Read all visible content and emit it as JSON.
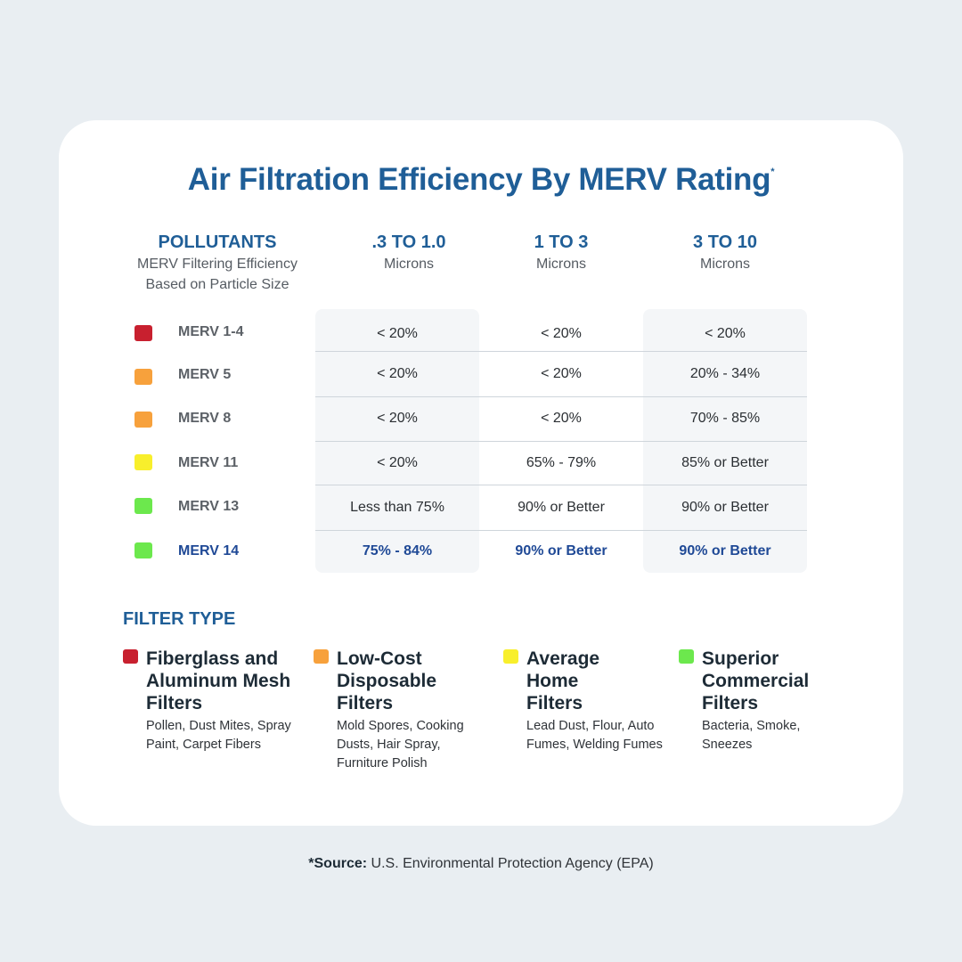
{
  "title": "Air Filtration Efficiency By MERV Rating",
  "title_mark": "*",
  "header": {
    "pollutants_title": "POLLUTANTS",
    "pollutants_sub1": "MERV Filtering Efficiency",
    "pollutants_sub2": "Based on Particle Size",
    "columns": [
      {
        "range": ".3 TO 1.0",
        "unit": "Microns"
      },
      {
        "range": "1 TO 3",
        "unit": "Microns"
      },
      {
        "range": "3 TO 10",
        "unit": "Microns"
      }
    ]
  },
  "rows": [
    {
      "label": "MERV 1-4",
      "color": "#c8202f",
      "values": [
        "< 20%",
        "< 20%",
        "< 20%"
      ]
    },
    {
      "label": "MERV 5",
      "color": "#f7a13c",
      "values": [
        "< 20%",
        "< 20%",
        "20% - 34%"
      ]
    },
    {
      "label": "MERV 8",
      "color": "#f7a13c",
      "values": [
        "< 20%",
        "< 20%",
        "70% - 85%"
      ]
    },
    {
      "label": "MERV 11",
      "color": "#f8ef2c",
      "values": [
        "< 20%",
        "65% - 79%",
        "85% or Better"
      ]
    },
    {
      "label": "MERV 13",
      "color": "#6ce84d",
      "values": [
        "Less than 75%",
        "90% or Better",
        "90% or Better"
      ]
    },
    {
      "label": "MERV 14",
      "color": "#6ce84d",
      "values": [
        "75% - 84%",
        "90% or Better",
        "90% or Better"
      ]
    }
  ],
  "filter_type": {
    "title": "FILTER TYPE",
    "items": [
      {
        "color": "#c8202f",
        "name": "Fiberglass and Aluminum Mesh Filters",
        "desc": "Pollen, Dust Mites, Spray Paint, Carpet Fibers"
      },
      {
        "color": "#f7a13c",
        "name": "Low-Cost Disposable Filters",
        "desc": "Mold Spores, Cooking Dusts, Hair Spray, Furniture Polish"
      },
      {
        "color": "#f8ef2c",
        "name": "Average Home Filters",
        "desc": "Lead Dust, Flour, Auto Fumes, Welding Fumes"
      },
      {
        "color": "#6ce84d",
        "name": "Superior Commercial Filters",
        "desc": "Bacteria, Smoke, Sneezes"
      }
    ]
  },
  "source": {
    "label": "*Source:",
    "text": "U.S. Environmental Protection Agency (EPA)"
  }
}
